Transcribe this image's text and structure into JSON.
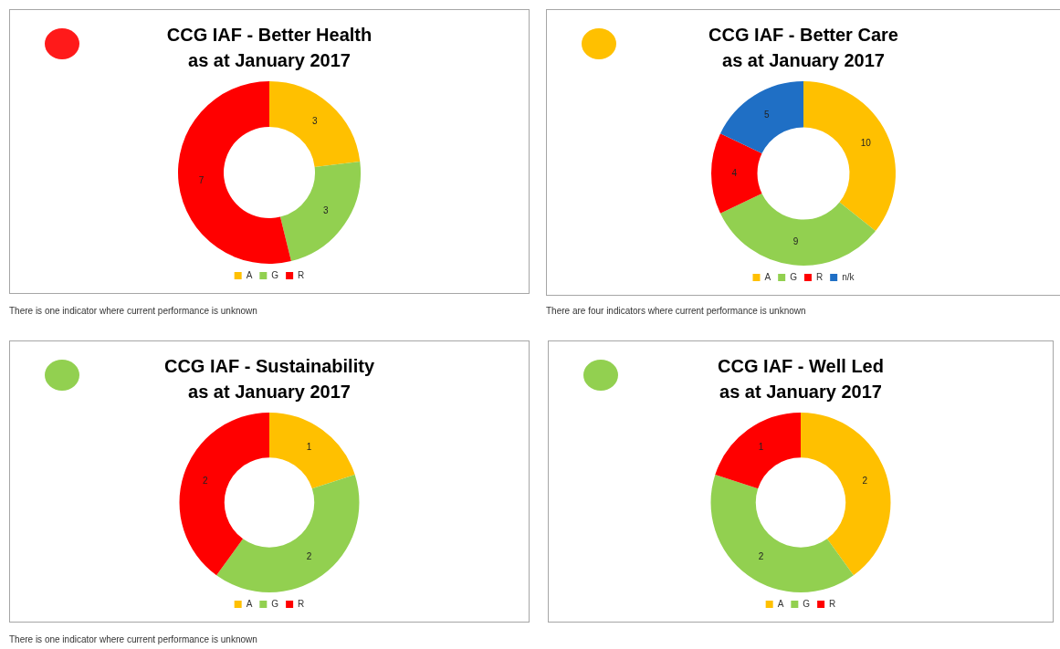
{
  "chart_data": [
    {
      "type": "donut",
      "title": "CCG IAF - Better Health",
      "subtitle": "as at January 2017",
      "categories": [
        "A",
        "G",
        "R"
      ],
      "values": [
        3,
        3,
        7
      ],
      "colors": [
        "#ffc000",
        "#92d050",
        "#ff0000"
      ],
      "data_labels": true,
      "legend": "bottom",
      "annotations": [
        "There is one indicator where current performance is unknown"
      ]
    },
    {
      "type": "donut",
      "title": "CCG IAF - Better Care",
      "subtitle": "as at January 2017",
      "categories": [
        "A",
        "G",
        "R",
        "n/k"
      ],
      "values": [
        10,
        9,
        4,
        5
      ],
      "colors": [
        "#ffc000",
        "#92d050",
        "#ff0000",
        "#1f6fc5"
      ],
      "data_labels": true,
      "legend": "bottom",
      "annotations": [
        "There are four indicators where current performance is unknown"
      ]
    },
    {
      "type": "donut",
      "title": "CCG IAF - Sustainability",
      "subtitle": "as at January 2017",
      "categories": [
        "A",
        "G",
        "R"
      ],
      "values": [
        1,
        2,
        2
      ],
      "colors": [
        "#ffc000",
        "#92d050",
        "#ff0000"
      ],
      "data_labels": true,
      "legend": "bottom",
      "annotations": [
        "There is one indicator where current performance is unknown"
      ]
    },
    {
      "type": "donut",
      "title": "CCG IAF - Well Led",
      "subtitle": "as at January 2017",
      "categories": [
        "A",
        "G",
        "R"
      ],
      "values": [
        2,
        2,
        1
      ],
      "colors": [
        "#ffc000",
        "#92d050",
        "#ff0000"
      ],
      "data_labels": true,
      "legend": "bottom"
    }
  ]
}
